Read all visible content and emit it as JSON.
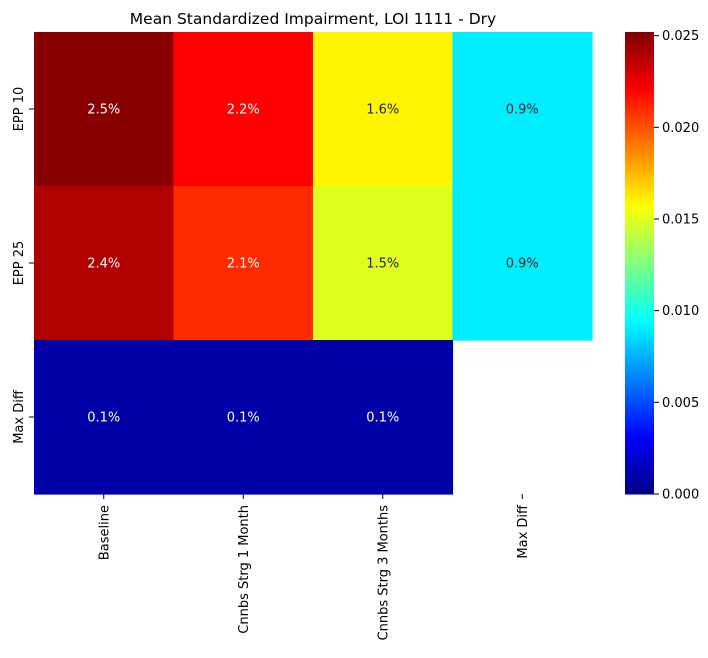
{
  "chart_data": {
    "type": "heatmap",
    "title": "Mean Standardized Impairment, LOI 1111 - Dry",
    "x_categories": [
      "Baseline",
      "Cnnbs Strg 1 Month",
      "Cnnbs Strg 3 Months",
      "Max Diff"
    ],
    "y_categories": [
      "EPP 10",
      "EPP 25",
      "Max Diff"
    ],
    "values": [
      [
        0.025,
        0.022,
        0.016,
        0.009
      ],
      [
        0.024,
        0.021,
        0.015,
        0.009
      ],
      [
        0.001,
        0.001,
        0.001,
        null
      ]
    ],
    "cell_labels": [
      [
        "2.5%",
        "2.2%",
        "1.6%",
        "0.9%"
      ],
      [
        "2.4%",
        "2.1%",
        "1.5%",
        "0.9%"
      ],
      [
        "0.1%",
        "0.1%",
        "0.1%",
        ""
      ]
    ],
    "colormap": "jet",
    "colorbar": {
      "range": [
        0,
        0.0252
      ],
      "ticks": [
        "0.000",
        "0.005",
        "0.010",
        "0.015",
        "0.020",
        "0.025"
      ]
    },
    "colors": {
      "cell_text_light": "#ffffff",
      "cell_text_dark": "#262626",
      "axis": "#000000"
    }
  }
}
